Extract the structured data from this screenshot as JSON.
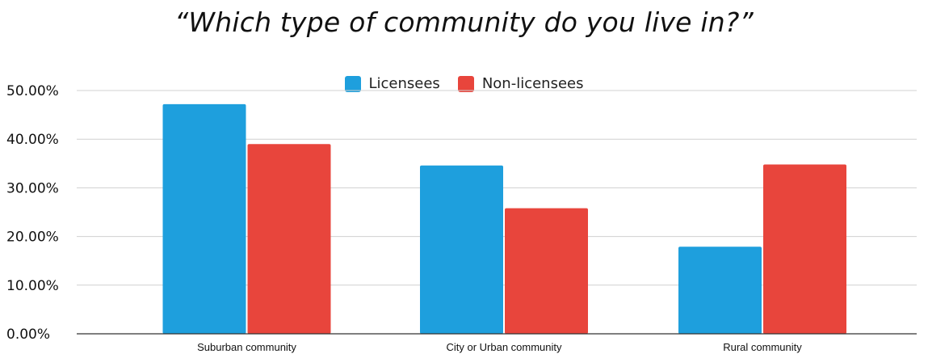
{
  "chart_data": {
    "type": "bar",
    "title": "“Which type of community do you live in?”",
    "categories": [
      "Suburban community",
      "City or Urban community",
      "Rural community"
    ],
    "series": [
      {
        "name": "Licensees",
        "values": [
          47.2,
          34.6,
          17.9
        ],
        "color": "#1e9fdd"
      },
      {
        "name": "Non-licensees",
        "values": [
          39.0,
          25.8,
          34.8
        ],
        "color": "#e8453c"
      }
    ],
    "ylim": [
      0,
      50
    ],
    "yticks": [
      0,
      10,
      20,
      30,
      40,
      50
    ],
    "ytick_labels": [
      "0.00%",
      "10.00%",
      "20.00%",
      "30.00%",
      "40.00%",
      "50.00%"
    ],
    "grid": true,
    "legend_position": "top-center",
    "xlabel": "",
    "ylabel": ""
  }
}
